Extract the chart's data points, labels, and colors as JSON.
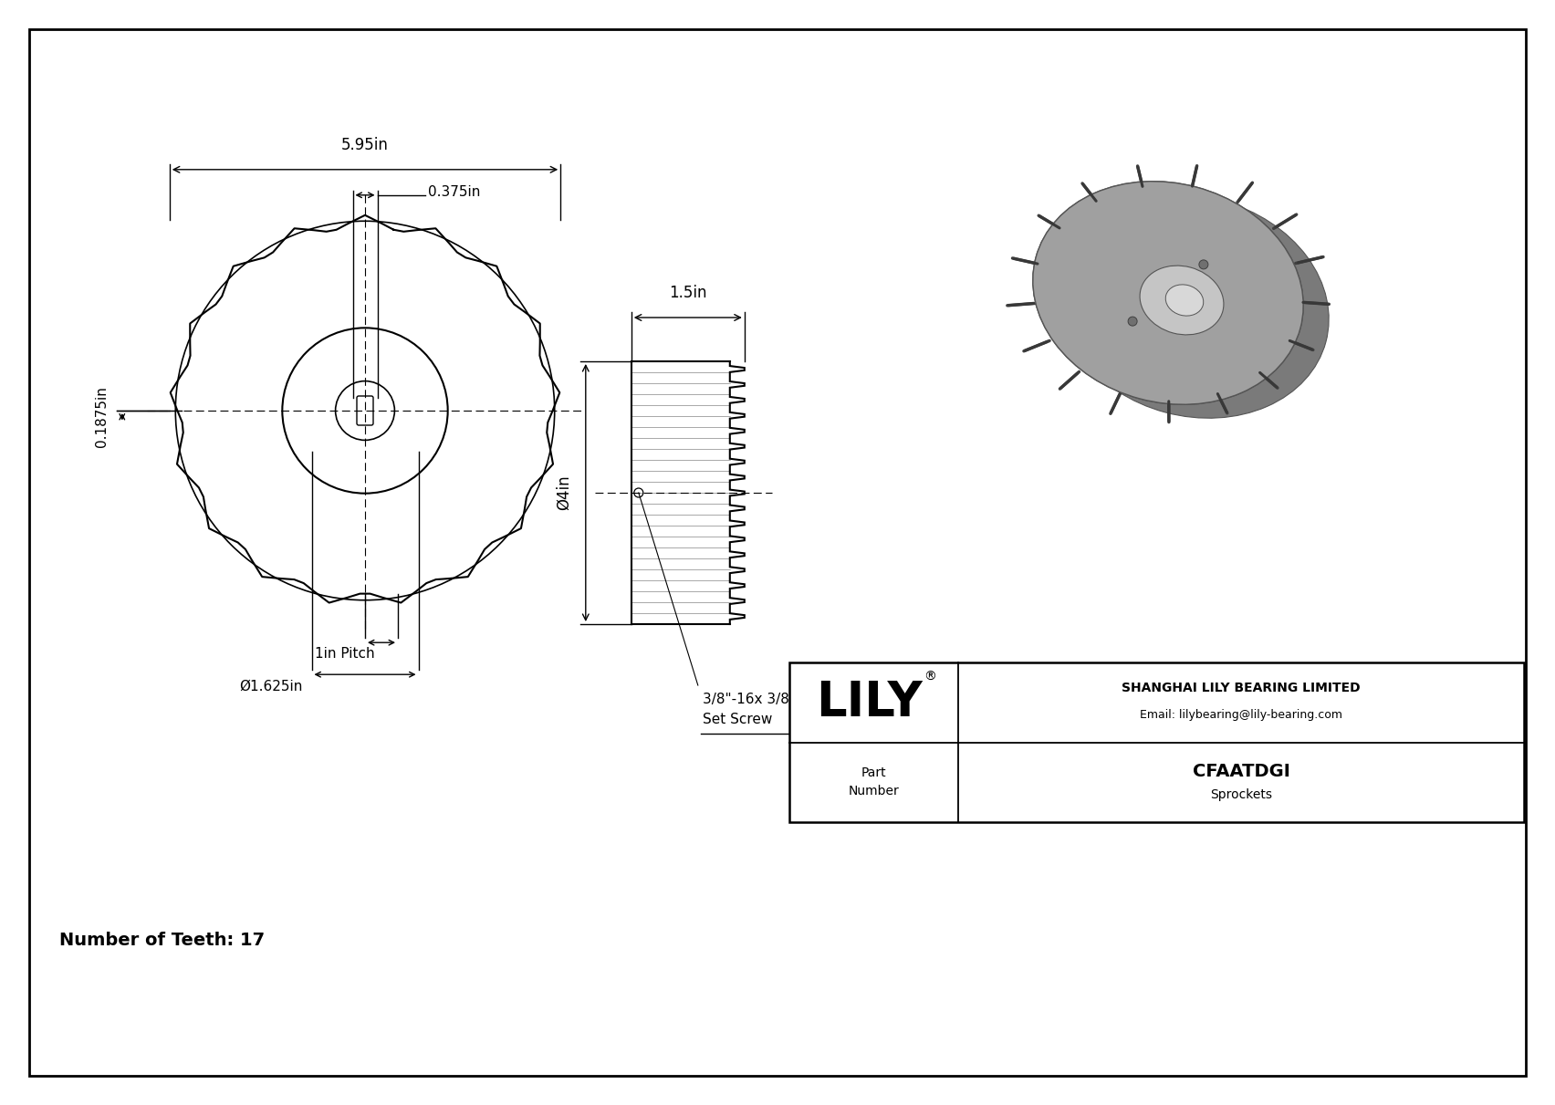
{
  "title_text": "Number of Teeth: 17",
  "part_number": "CFAATDGI",
  "part_type": "Sprockets",
  "company_name": "SHANGHAI LILY BEARING LIMITED",
  "company_email": "Email: lilybearing@lily-bearing.com",
  "brand": "LILY",
  "reg_symbol": "®",
  "phi_symbol": "Ø",
  "dim_outer": "5.95in",
  "dim_hub_width": "0.375in",
  "dim_tooth_h": "0.1875in",
  "dim_face_width": "1.5in",
  "dim_bore": "Ø4in",
  "dim_pitch": "1in Pitch",
  "dim_hub_bore": "Ø1.625in",
  "dim_set_screw_1": "3/8\"-16x 3/8\"",
  "dim_set_screw_2": "Set Screw",
  "num_teeth": 17,
  "gray_dark": "#7a7a7a",
  "gray_mid": "#a0a0a0",
  "gray_light": "#c5c5c5",
  "gray_lighter": "#d8d8d8"
}
